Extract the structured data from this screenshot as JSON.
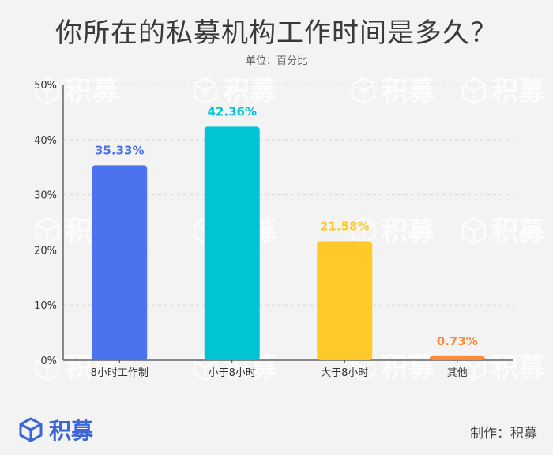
{
  "page": {
    "title": "你所在的私募机构工作时间是多久？",
    "unit_text": "单位：百分比",
    "watermark_text": "积募",
    "brand_name": "积募",
    "credit_text": "制作：积募",
    "brand_color": "#3a66d6"
  },
  "chart_data": {
    "type": "bar",
    "categories": [
      "8小时工作制",
      "小于8小时",
      "大于8小时",
      "其他"
    ],
    "values": [
      35.33,
      42.36,
      21.58,
      0.73
    ],
    "value_labels": [
      "35.33%",
      "42.36%",
      "21.58%",
      "0.73%"
    ],
    "colors": [
      "#4d72f0",
      "#00c4d4",
      "#ffc92a",
      "#ff8a3a"
    ],
    "label_colors": [
      "#4d72f0",
      "#00c4d4",
      "#ffc92a",
      "#ff8a3a"
    ],
    "ylim": [
      0,
      50
    ],
    "yticks": [
      0,
      10,
      20,
      30,
      40,
      50
    ],
    "ytick_labels": [
      "0%",
      "10%",
      "20%",
      "30%",
      "40%",
      "50%"
    ],
    "grid": true
  }
}
